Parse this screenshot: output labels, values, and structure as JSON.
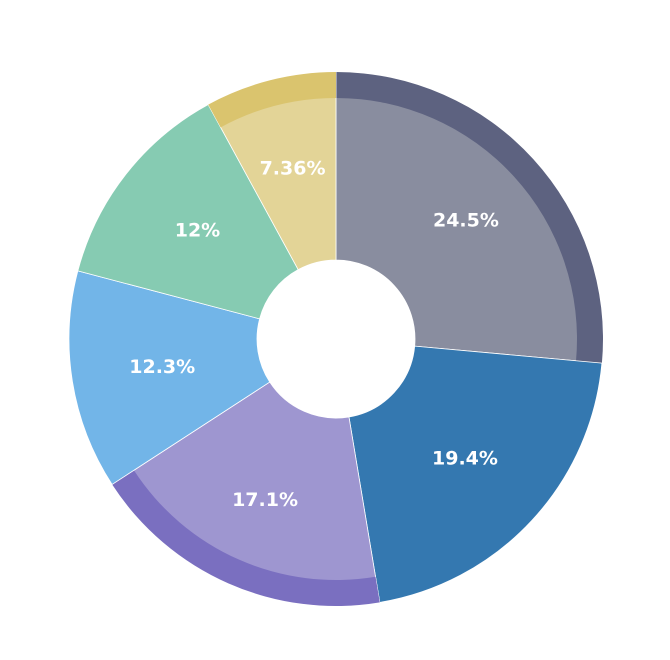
{
  "chart_data": {
    "type": "pie",
    "hole": true,
    "slices": [
      {
        "label": "24.5%",
        "value": 24.5,
        "color": "#898d9f",
        "rim_color": "#5d6280",
        "rim": true
      },
      {
        "label": "19.4%",
        "value": 19.4,
        "color": "#3478b0",
        "rim_color": "#3478b0",
        "rim": false
      },
      {
        "label": "17.1%",
        "value": 17.1,
        "color": "#9e96d0",
        "rim_color": "#7a6fc0",
        "rim": true
      },
      {
        "label": "12.3%",
        "value": 12.3,
        "color": "#72b5e8",
        "rim_color": "#72b5e8",
        "rim": false
      },
      {
        "label": "12%",
        "value": 12.0,
        "color": "#86cbb2",
        "rim_color": "#86cbb2",
        "rim": false
      },
      {
        "label": "7.36%",
        "value": 7.36,
        "color": "#e3d497",
        "rim_color": "#dac46e",
        "rim": true
      }
    ],
    "sort": "descending",
    "direction": "clockwise",
    "start": "top"
  }
}
